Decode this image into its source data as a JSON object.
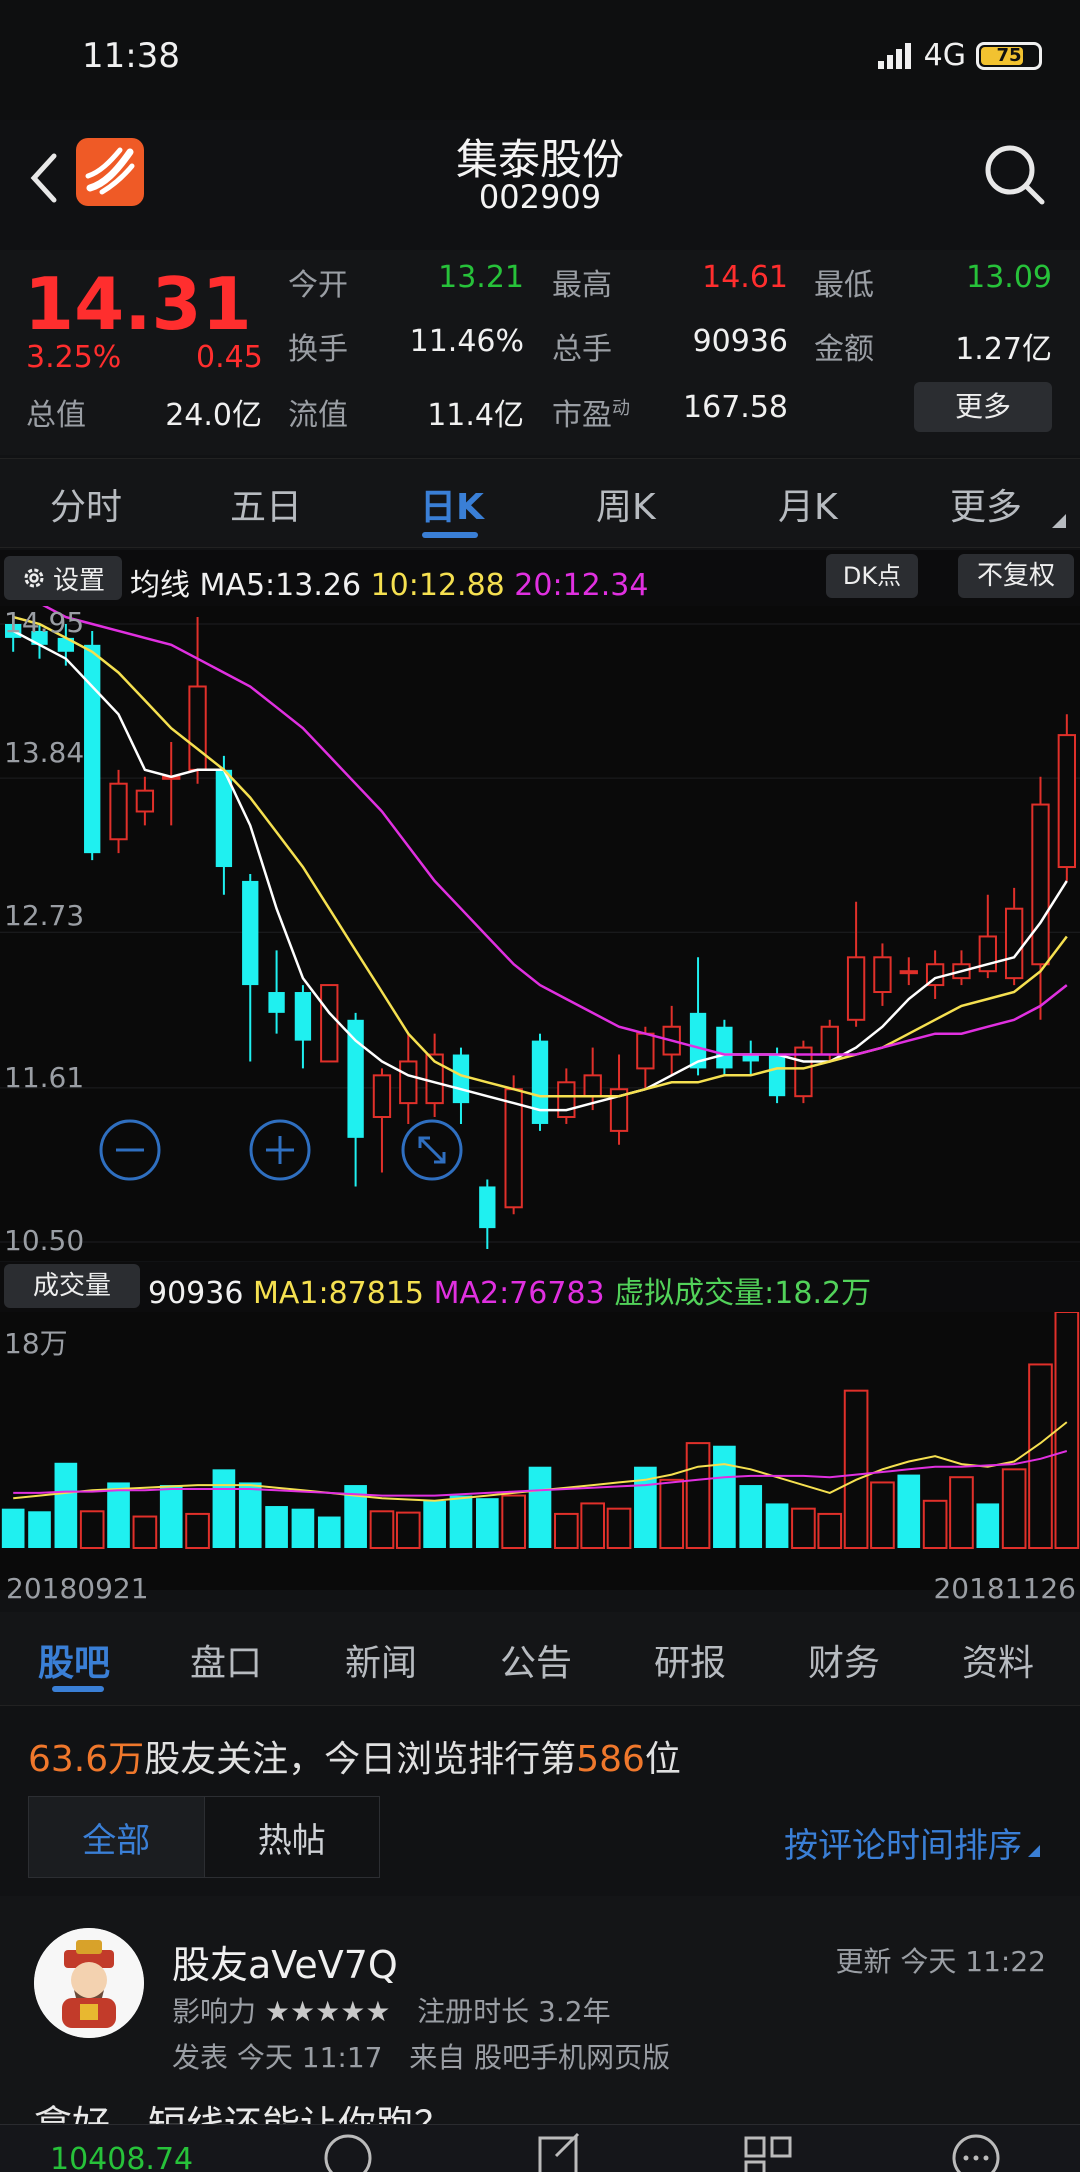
{
  "status": {
    "time": "11:38",
    "network": "4G",
    "battery": "75"
  },
  "header": {
    "title": "集泰股份",
    "code": "002909"
  },
  "quote": {
    "price": "14.31",
    "pct": "3.25%",
    "change": "0.45",
    "open_label": "今开",
    "open": "13.21",
    "high_label": "最高",
    "high": "14.61",
    "low_label": "最低",
    "low": "13.09",
    "turnover_label": "换手",
    "turnover": "11.46%",
    "volume_label": "总手",
    "volume": "90936",
    "amount_label": "金额",
    "amount": "1.27亿",
    "mktcap_label": "总值",
    "mktcap": "24.0亿",
    "float_label": "流值",
    "float": "11.4亿",
    "pe_label": "市盈",
    "pe_sup": "动",
    "pe": "167.58",
    "more": "更多"
  },
  "period_tabs": [
    "分时",
    "五日",
    "日K",
    "周K",
    "月K",
    "更多"
  ],
  "ma_bar": {
    "settings": "设置",
    "label": "均线",
    "ma5": "MA5:13.26",
    "ma10": "10:12.88",
    "ma20": "20:12.34",
    "dk": "DK点",
    "fq": "不复权"
  },
  "volume_bar": {
    "label": "成交量",
    "vol": "90936",
    "ma1": "MA1:87815",
    "ma2": "MA2:76783",
    "virtual": "虚拟成交量:18.2万",
    "max_label": "18万"
  },
  "dates": {
    "start": "20180921",
    "end": "20181126"
  },
  "colors": {
    "up": "#e0302a",
    "down": "#1ff0f0",
    "ma5": "#ffffff",
    "ma10": "#f5e050",
    "ma20": "#e030e0"
  },
  "chart_data": {
    "type": "candlestick",
    "y_ticks": [
      "14.95",
      "13.84",
      "12.73",
      "11.61",
      "10.50"
    ],
    "ylim": [
      10.5,
      14.95
    ],
    "candles": [
      {
        "o": 14.95,
        "c": 14.85,
        "h": 15.0,
        "l": 14.75
      },
      {
        "o": 14.9,
        "c": 14.8,
        "h": 14.95,
        "l": 14.7
      },
      {
        "o": 14.85,
        "c": 14.75,
        "h": 14.95,
        "l": 14.65
      },
      {
        "o": 14.8,
        "c": 13.3,
        "h": 14.9,
        "l": 13.25
      },
      {
        "o": 13.4,
        "c": 13.8,
        "h": 13.9,
        "l": 13.3
      },
      {
        "o": 13.6,
        "c": 13.75,
        "h": 13.85,
        "l": 13.5
      },
      {
        "o": 13.85,
        "c": 13.85,
        "h": 14.1,
        "l": 13.5
      },
      {
        "o": 13.9,
        "c": 14.5,
        "h": 15.0,
        "l": 13.8
      },
      {
        "o": 13.9,
        "c": 13.2,
        "h": 14.0,
        "l": 13.0
      },
      {
        "o": 13.1,
        "c": 12.35,
        "h": 13.15,
        "l": 11.8
      },
      {
        "o": 12.3,
        "c": 12.15,
        "h": 12.6,
        "l": 12.0
      },
      {
        "o": 12.3,
        "c": 11.95,
        "h": 12.35,
        "l": 11.75
      },
      {
        "o": 11.8,
        "c": 12.35,
        "h": 12.35,
        "l": 11.8
      },
      {
        "o": 12.1,
        "c": 11.25,
        "h": 12.15,
        "l": 10.9
      },
      {
        "o": 11.4,
        "c": 11.7,
        "h": 11.75,
        "l": 11.0
      },
      {
        "o": 11.5,
        "c": 11.8,
        "h": 12.0,
        "l": 11.35
      },
      {
        "o": 11.5,
        "c": 11.85,
        "h": 12.0,
        "l": 11.4
      },
      {
        "o": 11.85,
        "c": 11.5,
        "h": 11.9,
        "l": 11.35
      },
      {
        "o": 10.9,
        "c": 10.6,
        "h": 10.95,
        "l": 10.45
      },
      {
        "o": 10.75,
        "c": 11.6,
        "h": 11.7,
        "l": 10.7
      },
      {
        "o": 11.95,
        "c": 11.35,
        "h": 12.0,
        "l": 11.3
      },
      {
        "o": 11.4,
        "c": 11.65,
        "h": 11.75,
        "l": 11.35
      },
      {
        "o": 11.55,
        "c": 11.7,
        "h": 11.9,
        "l": 11.45
      },
      {
        "o": 11.3,
        "c": 11.6,
        "h": 11.85,
        "l": 11.2
      },
      {
        "o": 11.75,
        "c": 12.0,
        "h": 12.05,
        "l": 11.6
      },
      {
        "o": 11.85,
        "c": 12.05,
        "h": 12.2,
        "l": 11.7
      },
      {
        "o": 12.15,
        "c": 11.75,
        "h": 12.55,
        "l": 11.7
      },
      {
        "o": 12.05,
        "c": 11.75,
        "h": 12.1,
        "l": 11.7
      },
      {
        "o": 11.85,
        "c": 11.8,
        "h": 11.95,
        "l": 11.7
      },
      {
        "o": 11.85,
        "c": 11.55,
        "h": 11.9,
        "l": 11.5
      },
      {
        "o": 11.55,
        "c": 11.9,
        "h": 11.95,
        "l": 11.5
      },
      {
        "o": 11.85,
        "c": 12.05,
        "h": 12.1,
        "l": 11.8
      },
      {
        "o": 12.1,
        "c": 12.55,
        "h": 12.95,
        "l": 12.05
      },
      {
        "o": 12.3,
        "c": 12.55,
        "h": 12.65,
        "l": 12.2
      },
      {
        "o": 12.45,
        "c": 12.45,
        "h": 12.55,
        "l": 12.35
      },
      {
        "o": 12.35,
        "c": 12.5,
        "h": 12.6,
        "l": 12.25
      },
      {
        "o": 12.4,
        "c": 12.5,
        "h": 12.6,
        "l": 12.35
      },
      {
        "o": 12.45,
        "c": 12.7,
        "h": 13.0,
        "l": 12.4
      },
      {
        "o": 12.4,
        "c": 12.9,
        "h": 13.05,
        "l": 12.35
      },
      {
        "o": 12.5,
        "c": 13.65,
        "h": 13.85,
        "l": 12.1
      },
      {
        "o": 13.2,
        "c": 14.15,
        "h": 14.3,
        "l": 13.1
      }
    ],
    "ma5": [
      14.9,
      14.8,
      14.7,
      14.5,
      14.3,
      13.9,
      13.85,
      13.9,
      13.9,
      13.5,
      12.9,
      12.4,
      12.15,
      11.95,
      11.8,
      11.7,
      11.65,
      11.6,
      11.55,
      11.5,
      11.45,
      11.45,
      11.5,
      11.55,
      11.6,
      11.7,
      11.8,
      11.85,
      11.85,
      11.85,
      11.8,
      11.8,
      11.9,
      12.05,
      12.25,
      12.4,
      12.45,
      12.5,
      12.55,
      12.8,
      13.1
    ],
    "ma10": [
      15.0,
      14.95,
      14.85,
      14.75,
      14.6,
      14.4,
      14.2,
      14.05,
      13.9,
      13.7,
      13.45,
      13.2,
      12.9,
      12.6,
      12.3,
      12.0,
      11.8,
      11.7,
      11.65,
      11.6,
      11.55,
      11.55,
      11.55,
      11.55,
      11.6,
      11.65,
      11.65,
      11.7,
      11.7,
      11.75,
      11.75,
      11.8,
      11.85,
      11.9,
      12.0,
      12.1,
      12.2,
      12.25,
      12.3,
      12.45,
      12.7
    ],
    "ma20": [
      15.2,
      15.1,
      15.0,
      14.95,
      14.9,
      14.85,
      14.8,
      14.7,
      14.6,
      14.5,
      14.35,
      14.2,
      14.0,
      13.8,
      13.6,
      13.35,
      13.1,
      12.9,
      12.7,
      12.5,
      12.35,
      12.25,
      12.15,
      12.05,
      12.0,
      11.95,
      11.9,
      11.85,
      11.85,
      11.85,
      11.85,
      11.85,
      11.85,
      11.9,
      11.95,
      12.0,
      12.0,
      12.05,
      12.1,
      12.2,
      12.35
    ],
    "volume_ylim": [
      0,
      180000
    ],
    "volumes": [
      30000,
      28000,
      65000,
      28000,
      50000,
      24000,
      48000,
      26000,
      60000,
      50000,
      32000,
      30000,
      24000,
      48000,
      28000,
      27000,
      36000,
      40000,
      38000,
      40000,
      62000,
      26000,
      34000,
      30000,
      62000,
      52000,
      80000,
      78000,
      48000,
      34000,
      30000,
      26000,
      120000,
      50000,
      56000,
      36000,
      54000,
      34000,
      60000,
      140000,
      180000
    ],
    "volume_up": [
      false,
      false,
      false,
      true,
      false,
      true,
      false,
      true,
      false,
      false,
      false,
      false,
      false,
      false,
      true,
      true,
      false,
      false,
      false,
      true,
      false,
      true,
      true,
      true,
      false,
      true,
      true,
      false,
      false,
      false,
      true,
      true,
      true,
      true,
      false,
      true,
      true,
      false,
      true,
      true,
      true
    ],
    "vol_ma1": [
      38000,
      40000,
      42000,
      44000,
      45000,
      46000,
      47000,
      48000,
      48000,
      48000,
      46000,
      44000,
      42000,
      40000,
      38000,
      37000,
      36000,
      38000,
      40000,
      42000,
      44000,
      46000,
      48000,
      50000,
      52000,
      56000,
      62000,
      64000,
      60000,
      54000,
      48000,
      42000,
      52000,
      60000,
      66000,
      70000,
      64000,
      62000,
      66000,
      80000,
      96000
    ],
    "vol_ma2": [
      42000,
      42000,
      43000,
      43000,
      44000,
      44000,
      45000,
      45000,
      45000,
      45000,
      44000,
      43000,
      42000,
      41000,
      40000,
      40000,
      40000,
      41000,
      42000,
      43000,
      44000,
      45000,
      46000,
      47000,
      48000,
      50000,
      52000,
      54000,
      55000,
      55000,
      55000,
      54000,
      56000,
      58000,
      60000,
      62000,
      62000,
      63000,
      64000,
      68000,
      74000
    ]
  },
  "info_tabs": [
    "股吧",
    "盘口",
    "新闻",
    "公告",
    "研报",
    "财务",
    "资料"
  ],
  "forum": {
    "follow_count": "63.6万",
    "follow_text_1": "股友关注，今日浏览排行第",
    "rank": "586",
    "follow_text_2": "位",
    "filter_all": "全部",
    "filter_hot": "热帖",
    "sort": "按评论时间排序"
  },
  "post": {
    "username": "股友aVeV7Q",
    "updated": "更新 今天 11:22",
    "influence_label": "影响力",
    "stars": "★★★★★",
    "reg": "注册时长 3.2年",
    "posted": "发表 今天 11:17",
    "source": "来自 股吧手机网页版",
    "title": "拿好，短线还能让你跑？"
  },
  "bottom": {
    "index": "10408.74"
  }
}
